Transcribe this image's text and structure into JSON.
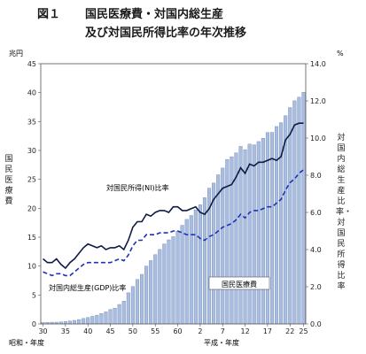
{
  "figure": {
    "number": "図１",
    "title_line1": "国民医療費・対国内総生産",
    "title_line2": "及び対国民所得比率の年次推移"
  },
  "chart_data": {
    "type": "bar",
    "categories": [
      "30",
      "31",
      "32",
      "33",
      "34",
      "35",
      "36",
      "37",
      "38",
      "39",
      "40",
      "41",
      "42",
      "43",
      "44",
      "45",
      "46",
      "47",
      "48",
      "49",
      "50",
      "51",
      "52",
      "53",
      "54",
      "55",
      "56",
      "57",
      "58",
      "59",
      "60",
      "61",
      "62",
      "63",
      "元",
      "2",
      "3",
      "4",
      "5",
      "6",
      "7",
      "8",
      "9",
      "10",
      "11",
      "12",
      "13",
      "14",
      "15",
      "16",
      "17",
      "18",
      "19",
      "20",
      "21",
      "22",
      "23",
      "24",
      "25"
    ],
    "tick_labels": [
      "30",
      "35",
      "40",
      "45",
      "50",
      "55",
      "60",
      "2",
      "7",
      "12",
      "17",
      "22",
      "25"
    ],
    "xlabel_left": "昭和・年度",
    "xlabel_right": "平成・年度",
    "ylabel_left_unit": "兆円",
    "ylabel_left": "国民医療費",
    "ylabel_right_unit": "%",
    "ylabel_right": "対国内総生産比率・対国民所得比率",
    "ylim_left": [
      0,
      45
    ],
    "ylim_right": [
      0,
      14
    ],
    "yticks_left": [
      "0",
      "5",
      "10",
      "15",
      "20",
      "25",
      "30",
      "35",
      "40",
      "45"
    ],
    "yticks_right": [
      "0.0",
      "2.0",
      "4.0",
      "6.0",
      "8.0",
      "10.0",
      "12.0",
      "14.0"
    ],
    "bar_series": {
      "name": "国民医療費",
      "values": [
        0.24,
        0.26,
        0.29,
        0.3,
        0.33,
        0.41,
        0.51,
        0.61,
        0.75,
        0.94,
        1.12,
        1.31,
        1.51,
        1.8,
        2.08,
        2.5,
        2.73,
        3.37,
        3.94,
        5.38,
        6.48,
        7.68,
        8.57,
        10.0,
        10.95,
        11.98,
        12.88,
        13.84,
        14.54,
        15.09,
        16.02,
        17.06,
        18.08,
        18.75,
        19.73,
        20.61,
        21.83,
        23.48,
        24.36,
        25.79,
        26.96,
        28.45,
        28.91,
        29.58,
        30.7,
        30.14,
        31.1,
        30.98,
        31.54,
        32.11,
        33.11,
        33.13,
        34.14,
        34.81,
        36.01,
        37.42,
        38.59,
        39.21,
        40.06
      ]
    },
    "series": [
      {
        "name": "対国民所得(NI)比率",
        "axis": "right",
        "style": "solid",
        "values": [
          3.5,
          3.3,
          3.3,
          3.5,
          3.2,
          3.0,
          3.3,
          3.5,
          3.8,
          4.1,
          4.3,
          4.2,
          4.1,
          4.2,
          4.0,
          4.1,
          4.1,
          4.2,
          4.0,
          4.5,
          5.2,
          5.5,
          5.5,
          5.9,
          5.8,
          6.0,
          6.1,
          6.1,
          6.0,
          6.3,
          6.3,
          6.1,
          6.1,
          6.2,
          6.3,
          6.0,
          5.9,
          6.2,
          6.7,
          7.0,
          7.3,
          7.4,
          7.5,
          7.9,
          8.4,
          8.1,
          8.6,
          8.5,
          8.7,
          8.7,
          8.8,
          8.9,
          8.8,
          9.0,
          9.9,
          10.2,
          10.7,
          10.8,
          10.8
        ]
      },
      {
        "name": "対国内総生産(GDP)比率",
        "axis": "right",
        "style": "dashed",
        "values": [
          2.8,
          2.7,
          2.6,
          2.7,
          2.7,
          2.6,
          2.6,
          2.8,
          3.0,
          3.2,
          3.3,
          3.3,
          3.3,
          3.3,
          3.3,
          3.3,
          3.4,
          3.5,
          3.4,
          3.7,
          4.2,
          4.5,
          4.5,
          4.8,
          4.8,
          4.8,
          4.9,
          4.9,
          4.9,
          5.0,
          5.0,
          4.9,
          4.8,
          4.8,
          4.8,
          4.6,
          4.5,
          4.7,
          4.8,
          5.0,
          5.2,
          5.3,
          5.4,
          5.6,
          5.9,
          5.7,
          6.0,
          6.1,
          6.1,
          6.2,
          6.3,
          6.3,
          6.5,
          6.7,
          7.2,
          7.6,
          7.8,
          8.1,
          8.3
        ]
      }
    ],
    "annotations": {
      "ni_label": "対国民所得(NI)比率",
      "gdp_label": "対国内総生産(GDP)比率",
      "bar_label": "国民医療費"
    },
    "grid": false,
    "legend": "none (inline labels)",
    "colors": {
      "bar": "#a9bde0",
      "bar_edge": "#6f87b4",
      "ni_line": "#101a46",
      "gdp_line": "#1e32b4"
    }
  }
}
